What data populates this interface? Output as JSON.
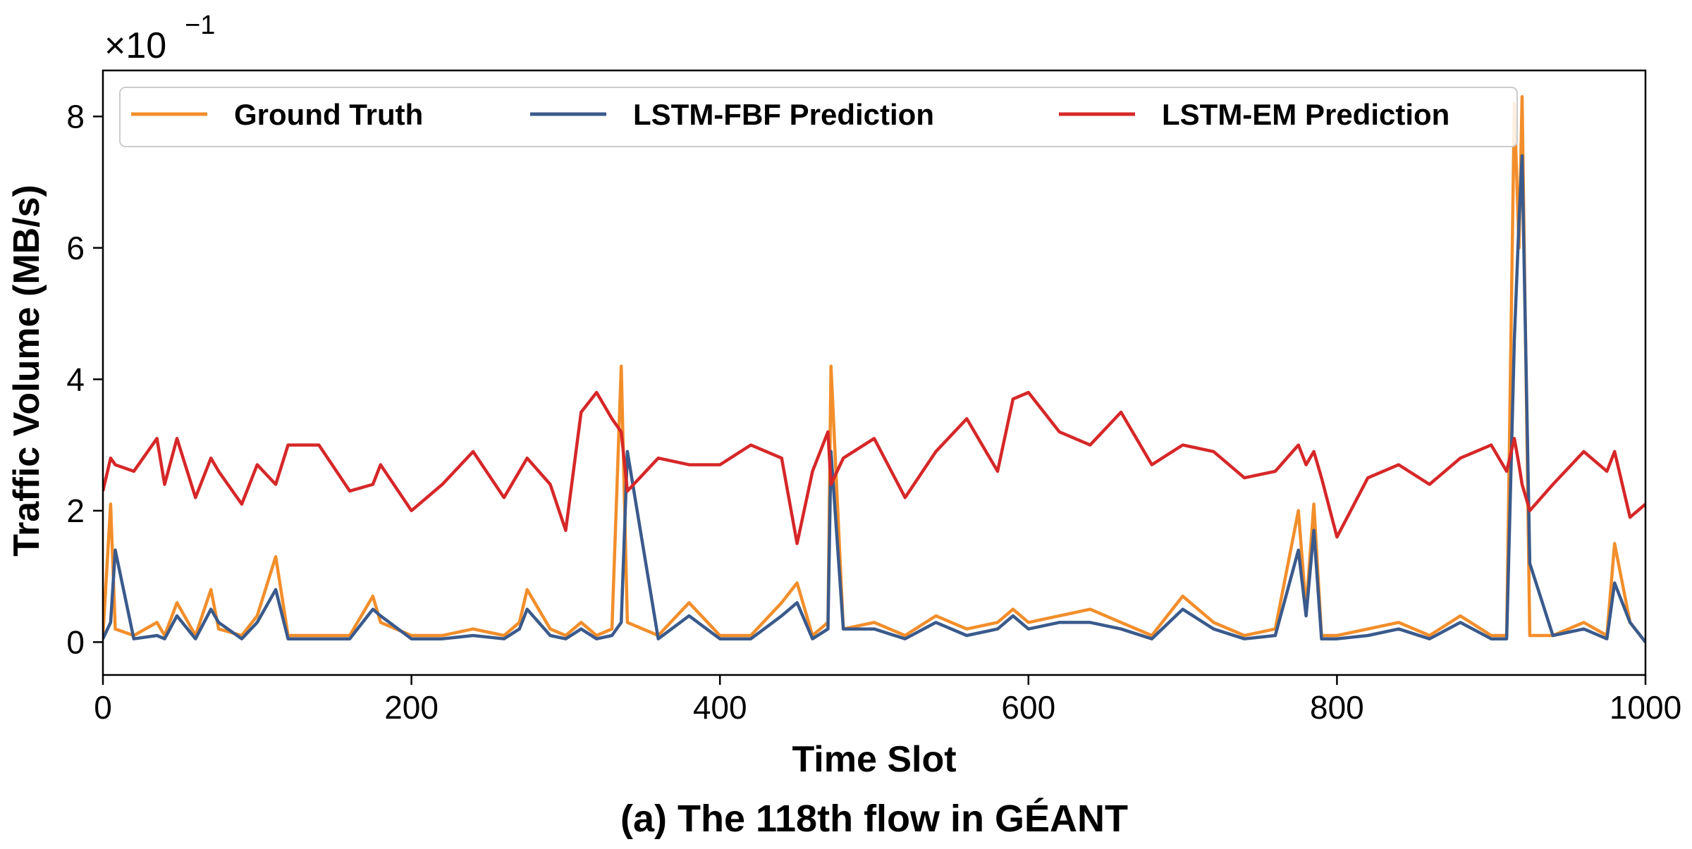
{
  "chart_data": {
    "type": "line",
    "caption": "(a) The 118th flow in GÉANT",
    "xlabel": "Time Slot",
    "ylabel": "Traffic Volume (MB/s)",
    "y_scale_label": "×10",
    "y_scale_exponent": "−1",
    "xlim": [
      0,
      1000
    ],
    "ylim": [
      -0.5,
      8.7
    ],
    "x_ticks": [
      0,
      200,
      400,
      600,
      800,
      1000
    ],
    "y_ticks": [
      0,
      2,
      4,
      6,
      8
    ],
    "grid": false,
    "legend_position": "top",
    "x": [
      0,
      5,
      8,
      20,
      35,
      40,
      48,
      60,
      70,
      75,
      90,
      100,
      112,
      120,
      140,
      160,
      175,
      180,
      200,
      220,
      240,
      260,
      270,
      275,
      290,
      300,
      310,
      320,
      330,
      336,
      340,
      360,
      380,
      400,
      420,
      440,
      450,
      460,
      470,
      472,
      480,
      500,
      520,
      540,
      560,
      580,
      590,
      600,
      620,
      640,
      660,
      680,
      700,
      720,
      740,
      760,
      775,
      780,
      785,
      790,
      800,
      820,
      840,
      860,
      880,
      900,
      910,
      915,
      918,
      920,
      925,
      940,
      960,
      975,
      980,
      990,
      1000
    ],
    "series": [
      {
        "name": "Ground Truth",
        "color": "#f28e2b",
        "values": [
          0.1,
          2.1,
          0.2,
          0.1,
          0.3,
          0.1,
          0.6,
          0.1,
          0.8,
          0.2,
          0.1,
          0.4,
          1.3,
          0.1,
          0.1,
          0.1,
          0.7,
          0.3,
          0.1,
          0.1,
          0.2,
          0.1,
          0.3,
          0.8,
          0.2,
          0.1,
          0.3,
          0.1,
          0.2,
          4.2,
          0.3,
          0.1,
          0.6,
          0.1,
          0.1,
          0.6,
          0.9,
          0.1,
          0.3,
          4.2,
          0.2,
          0.3,
          0.1,
          0.4,
          0.2,
          0.3,
          0.5,
          0.3,
          0.4,
          0.5,
          0.3,
          0.1,
          0.7,
          0.3,
          0.1,
          0.2,
          2.0,
          0.5,
          2.1,
          0.1,
          0.1,
          0.2,
          0.3,
          0.1,
          0.4,
          0.1,
          0.1,
          8.2,
          6.0,
          8.3,
          0.1,
          0.1,
          0.3,
          0.1,
          1.5,
          0.3,
          0.0
        ]
      },
      {
        "name": "LSTM-FBF Prediction",
        "color": "#3a5a8c",
        "values": [
          0.05,
          0.3,
          1.4,
          0.05,
          0.1,
          0.05,
          0.4,
          0.05,
          0.5,
          0.3,
          0.05,
          0.3,
          0.8,
          0.05,
          0.05,
          0.05,
          0.5,
          0.4,
          0.05,
          0.05,
          0.1,
          0.05,
          0.2,
          0.5,
          0.1,
          0.05,
          0.2,
          0.05,
          0.1,
          0.3,
          2.9,
          0.05,
          0.4,
          0.05,
          0.05,
          0.4,
          0.6,
          0.05,
          0.2,
          2.9,
          0.2,
          0.2,
          0.05,
          0.3,
          0.1,
          0.2,
          0.4,
          0.2,
          0.3,
          0.3,
          0.2,
          0.05,
          0.5,
          0.2,
          0.05,
          0.1,
          1.4,
          0.4,
          1.7,
          0.05,
          0.05,
          0.1,
          0.2,
          0.05,
          0.3,
          0.05,
          0.05,
          4.6,
          6.4,
          7.4,
          1.2,
          0.1,
          0.2,
          0.05,
          0.9,
          0.3,
          0.0
        ]
      },
      {
        "name": "LSTM-EM Prediction",
        "color": "#d62728",
        "values": [
          2.3,
          2.8,
          2.7,
          2.6,
          3.1,
          2.4,
          3.1,
          2.2,
          2.8,
          2.6,
          2.1,
          2.7,
          2.4,
          3.0,
          3.0,
          2.3,
          2.4,
          2.7,
          2.0,
          2.4,
          2.9,
          2.2,
          2.6,
          2.8,
          2.4,
          1.7,
          3.5,
          3.8,
          3.4,
          3.2,
          2.3,
          2.8,
          2.7,
          2.7,
          3.0,
          2.8,
          1.5,
          2.6,
          3.2,
          2.4,
          2.8,
          3.1,
          2.2,
          2.9,
          3.4,
          2.6,
          3.7,
          3.8,
          3.2,
          3.0,
          3.5,
          2.7,
          3.0,
          2.9,
          2.5,
          2.6,
          3.0,
          2.7,
          2.9,
          2.5,
          1.6,
          2.5,
          2.7,
          2.4,
          2.8,
          3.0,
          2.6,
          3.1,
          2.7,
          2.4,
          2.0,
          2.4,
          2.9,
          2.6,
          2.9,
          1.9,
          2.1
        ]
      }
    ]
  }
}
